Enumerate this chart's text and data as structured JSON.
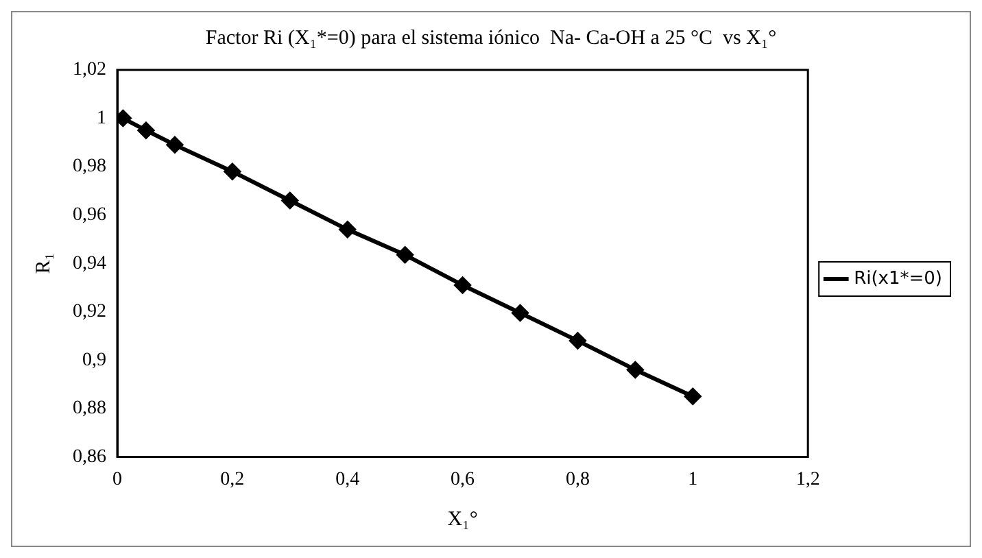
{
  "chart_data": {
    "type": "line",
    "title": "Factor Ri (X₁*=0) para el sistema iónico  Na- Ca-OH a 25 °C  vs X₁°",
    "xlabel": "X₁°",
    "ylabel": "R₁",
    "x": [
      0.01,
      0.05,
      0.1,
      0.2,
      0.3,
      0.4,
      0.5,
      0.6,
      0.7,
      0.8,
      0.9,
      1.0
    ],
    "series": [
      {
        "name": "Ri(x1*=0)",
        "color": "#000000",
        "values": [
          1.0,
          0.995,
          0.989,
          0.978,
          0.966,
          0.954,
          0.9435,
          0.931,
          0.9195,
          0.908,
          0.896,
          0.885
        ]
      }
    ],
    "xlim": [
      0,
      1.2
    ],
    "xticks": [
      0,
      {
        "value": 0.2,
        "label": "0,2"
      },
      {
        "value": 0.4,
        "label": "0,4"
      },
      {
        "value": 0.6,
        "label": "0,6"
      },
      {
        "value": 0.8,
        "label": "0,8"
      },
      1,
      {
        "value": 1.2,
        "label": "1,2"
      }
    ],
    "ylim": [
      0.86,
      1.02
    ],
    "yticks": [
      {
        "value": 0.86,
        "label": "0,86"
      },
      {
        "value": 0.88,
        "label": "0,88"
      },
      {
        "value": 0.9,
        "label": "0,9"
      },
      {
        "value": 0.92,
        "label": "0,92"
      },
      {
        "value": 0.94,
        "label": "0,94"
      },
      {
        "value": 0.96,
        "label": "0,96"
      },
      {
        "value": 0.98,
        "label": "0,98"
      },
      1,
      {
        "value": 1.02,
        "label": "1,02"
      }
    ],
    "grid": false,
    "legend": "right",
    "marker": "diamond",
    "line_style": "solid"
  }
}
